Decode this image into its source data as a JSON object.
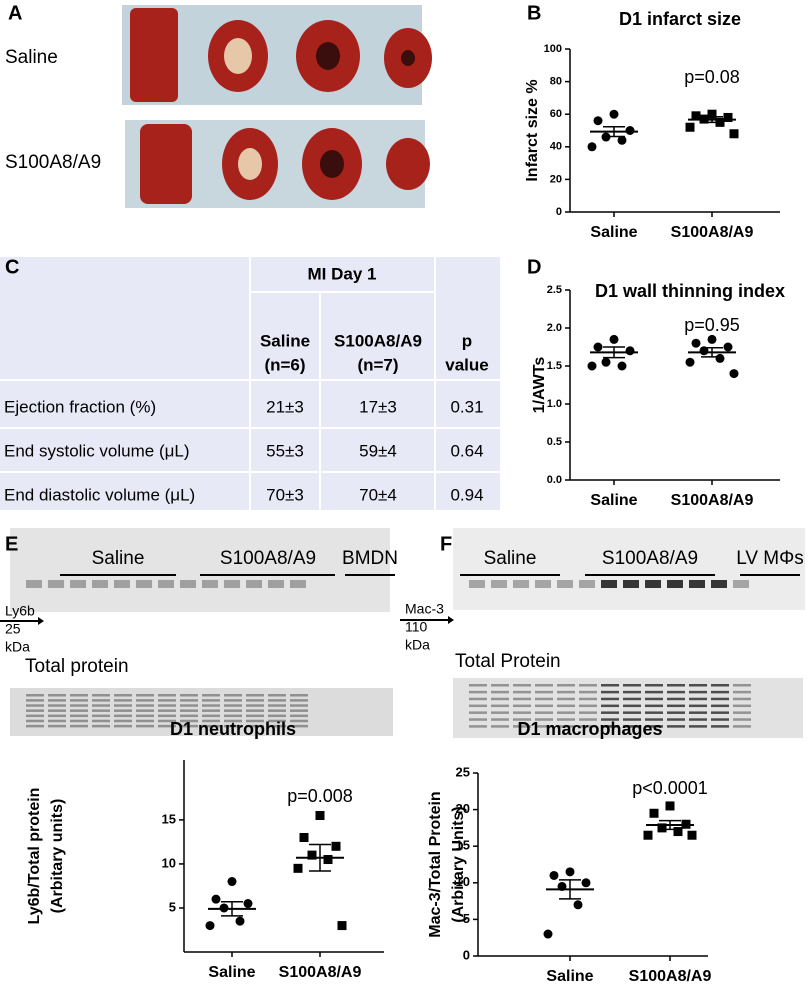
{
  "panel_labels": [
    "A",
    "B",
    "C",
    "D",
    "E",
    "F"
  ],
  "photos": {
    "row_labels": [
      "Saline",
      "S100A8/A9"
    ]
  },
  "table": {
    "group_header": "MI Day 1",
    "columns": [
      [
        "Saline",
        "(n=6)"
      ],
      [
        "S100A8/A9",
        "(n=7)"
      ],
      [
        "p",
        "value"
      ]
    ],
    "rows": [
      [
        "Ejection fraction (%)",
        "21±3",
        "17±3",
        "0.31"
      ],
      [
        "End systolic volume (μL)",
        "55±3",
        "59±4",
        "0.64"
      ],
      [
        "End diastolic volume (μL)",
        "70±3",
        "70±4",
        "0.94"
      ]
    ]
  },
  "blots": [
    {
      "group_labels": [
        "Saline",
        "S100A8/A9",
        "BMDN"
      ],
      "marker": "Ly6b",
      "size": "25",
      "unit": "kDa",
      "loading_label": "Total protein"
    },
    {
      "group_labels": [
        "Saline",
        "S100A8/A9",
        "LV MΦs"
      ],
      "marker": "Mac-3",
      "size": "110",
      "unit": "kDa",
      "loading_label": "Total Protein"
    }
  ],
  "chart_data": [
    {
      "type": "dot_plot",
      "title": "D1 infarct size",
      "ylabel": [
        "Infarct size %"
      ],
      "categories": [
        "Saline",
        "S100A8/A9"
      ],
      "markers": [
        "circle",
        "square"
      ],
      "values": [
        [
          60,
          56,
          50,
          46,
          44,
          40
        ],
        [
          60,
          59,
          58,
          57,
          55,
          52,
          48
        ]
      ],
      "means": [
        49.3,
        56.7
      ],
      "sems": [
        3,
        1.7
      ],
      "annotation": "p=0.08",
      "ylim": [
        0,
        100
      ],
      "yticks": [
        0,
        20,
        40,
        60,
        80,
        100
      ]
    },
    {
      "type": "dot_plot",
      "title": "D1 wall thinning index",
      "ylabel": [
        "1/AWTs"
      ],
      "categories": [
        "Saline",
        "S100A8/A9"
      ],
      "markers": [
        "circle",
        "circle"
      ],
      "values": [
        [
          1.85,
          1.75,
          1.7,
          1.55,
          1.5,
          1.5
        ],
        [
          1.85,
          1.8,
          1.75,
          1.7,
          1.6,
          1.55,
          1.4
        ]
      ],
      "means": [
        1.68,
        1.68
      ],
      "sems": [
        0.07,
        0.06
      ],
      "annotation": "p=0.95",
      "ylim": [
        0,
        2.5
      ],
      "yticks": [
        {
          "value": 0,
          "label": "0.0"
        },
        0.5,
        {
          "value": 1,
          "label": "1.0"
        },
        1.5,
        {
          "value": 2,
          "label": "2.0"
        },
        2.5
      ]
    },
    {
      "type": "dot_plot",
      "title": "D1 neutrophils",
      "ylabel": [
        "Ly6b/Total protein",
        "(Arbitary units)"
      ],
      "categories": [
        "Saline",
        "S100A8/A9"
      ],
      "markers": [
        "circle",
        "square"
      ],
      "values": [
        [
          8,
          6,
          5.5,
          5,
          3.5,
          3
        ],
        [
          15.5,
          13,
          12,
          11,
          10.5,
          9.5,
          3
        ]
      ],
      "means": [
        4.9,
        10.7
      ],
      "sems": [
        0.8,
        1.5
      ],
      "annotation": "p=0.008",
      "ylim": [
        0,
        21.8
      ],
      "yticks": [
        5,
        10,
        15
      ]
    },
    {
      "type": "dot_plot",
      "title": "D1 macrophages",
      "ylabel": [
        "Mac-3/Total Protein",
        "(Arbitary Units)"
      ],
      "categories": [
        "Saline",
        "S100A8/A9"
      ],
      "markers": [
        "circle",
        "square"
      ],
      "values": [
        [
          11.5,
          11,
          10,
          9.5,
          7,
          3
        ],
        [
          20.5,
          19.5,
          18,
          17.5,
          17,
          16.5,
          16.5
        ]
      ],
      "means": [
        9.1,
        17.9
      ],
      "sems": [
        1.3,
        0.6
      ],
      "annotation": "p<0.0001",
      "ylim": [
        0,
        25
      ],
      "yticks": [
        0,
        5,
        10,
        15,
        20,
        25
      ]
    }
  ]
}
